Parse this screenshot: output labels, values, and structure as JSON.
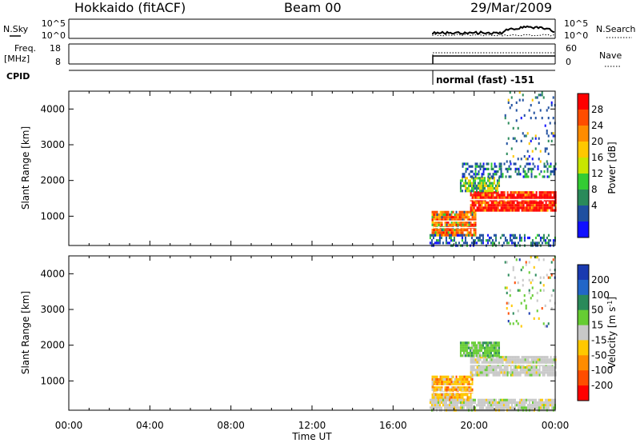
{
  "header": {
    "station": "Hokkaido (fitACF)",
    "beam": "Beam 00",
    "date": "29/Mar/2009"
  },
  "strip_labels": {
    "nsky": "N.Sky",
    "freq": "Freq.",
    "mhz": "[MHz]",
    "cpid": "CPID",
    "nsearch": "N.Search",
    "nave": "Nave",
    "nsky_ticks": [
      "10^5",
      "10^0"
    ],
    "nsearch_ticks": [
      "10^5",
      "10^0"
    ],
    "freq_ticks": [
      "18",
      "8"
    ],
    "nave_ticks": [
      "60",
      "0"
    ],
    "mode_label": "normal (fast) -151"
  },
  "chart_data": [
    {
      "type": "heatmap",
      "name": "power",
      "ylabel": "Slant Range [km]",
      "xlabel": "Time UT",
      "xlim": [
        0,
        24
      ],
      "ylim": [
        180,
        4500
      ],
      "xtick_labels": [
        "00:00",
        "04:00",
        "08:00",
        "12:00",
        "16:00",
        "20:00",
        "00:00"
      ],
      "xticks": [
        0,
        4,
        8,
        12,
        16,
        20,
        24
      ],
      "yticks": [
        1000,
        2000,
        3000,
        4000
      ],
      "ytick_labels": [
        "1000",
        "2000",
        "3000",
        "4000"
      ],
      "colorbar": {
        "label": "Power [dB]",
        "tick_labels": [
          "28",
          "24",
          "20",
          "16",
          "12",
          "8",
          "4"
        ],
        "colors": [
          "#ff0000",
          "#ff4d00",
          "#ff8c00",
          "#ffc800",
          "#c8e600",
          "#33cc33",
          "#2a8a5a",
          "#1f4fa0",
          "#1010ff"
        ]
      },
      "regions": [
        {
          "x": [
            17.9,
            20.1
          ],
          "y": [
            500,
            1150
          ],
          "level": "high"
        },
        {
          "x": [
            19.8,
            24.0
          ],
          "y": [
            1150,
            1700
          ],
          "level": "very-high"
        },
        {
          "x": [
            19.3,
            21.2
          ],
          "y": [
            1700,
            2100
          ],
          "level": "mid"
        },
        {
          "x": [
            19.4,
            24.0
          ],
          "y": [
            2100,
            2500
          ],
          "level": "low"
        },
        {
          "x": [
            17.8,
            24.0
          ],
          "y": [
            200,
            500
          ],
          "level": "low"
        },
        {
          "x": [
            21.5,
            24.0
          ],
          "y": [
            2500,
            4500
          ],
          "level": "sparse"
        }
      ]
    },
    {
      "type": "heatmap",
      "name": "velocity",
      "ylabel": "Slant Range [km]",
      "xlabel": "Time UT",
      "xlim": [
        0,
        24
      ],
      "ylim": [
        180,
        4500
      ],
      "xtick_labels": [
        "00:00",
        "04:00",
        "08:00",
        "12:00",
        "16:00",
        "20:00",
        "00:00"
      ],
      "xticks": [
        0,
        4,
        8,
        12,
        16,
        20,
        24
      ],
      "yticks": [
        1000,
        2000,
        3000,
        4000
      ],
      "ytick_labels": [
        "1000",
        "2000",
        "3000",
        "4000"
      ],
      "colorbar": {
        "label": "Velocity [m s^-1]",
        "tick_labels": [
          "200",
          "100",
          "50",
          "15",
          "-15",
          "-50",
          "-100",
          "-200"
        ],
        "colors": [
          "#1a3ab0",
          "#2266c8",
          "#2a8a5a",
          "#66cc33",
          "#c8c8c8",
          "#ffc800",
          "#ff8c00",
          "#ff4d00",
          "#ff0000"
        ]
      },
      "regions": [
        {
          "x": [
            17.9,
            19.9
          ],
          "y": [
            500,
            1150
          ],
          "level": "negative"
        },
        {
          "x": [
            19.8,
            24.0
          ],
          "y": [
            1150,
            1700
          ],
          "level": "near-zero"
        },
        {
          "x": [
            19.3,
            21.2
          ],
          "y": [
            1700,
            2100
          ],
          "level": "positive"
        },
        {
          "x": [
            17.8,
            24.0
          ],
          "y": [
            200,
            500
          ],
          "level": "near-zero"
        },
        {
          "x": [
            21.5,
            24.0
          ],
          "y": [
            2500,
            4500
          ],
          "level": "sparse"
        }
      ]
    }
  ]
}
